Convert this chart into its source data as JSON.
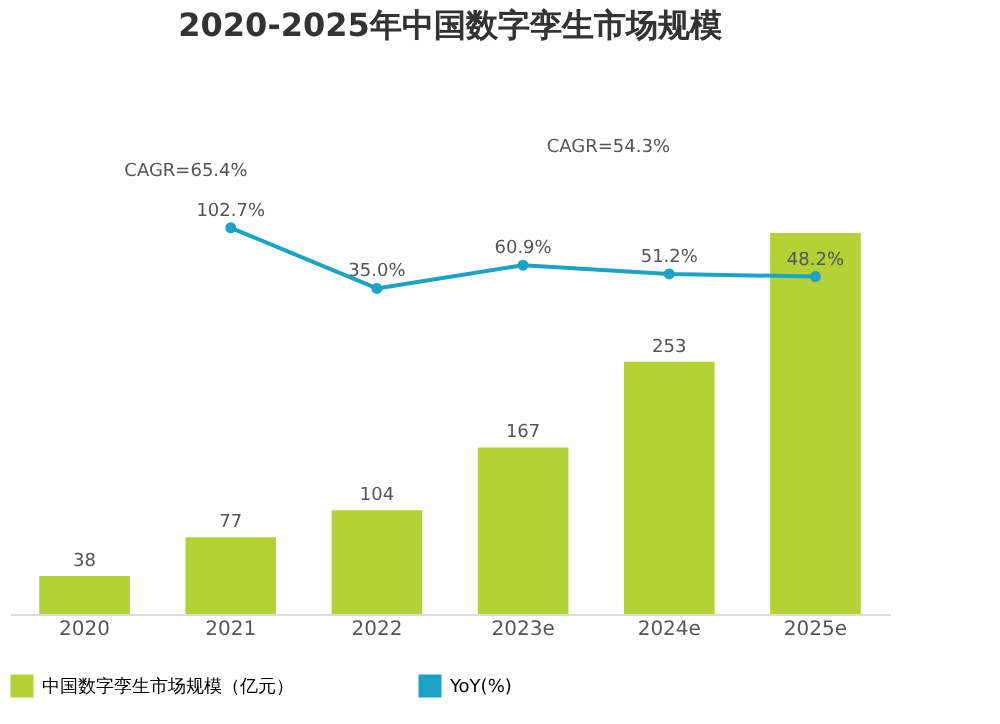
{
  "chart_data": {
    "type": "bar",
    "title": "2020-2025年中国数字孪生市场规模",
    "categories": [
      "2020",
      "2021",
      "2022",
      "2023e",
      "2024e",
      "2025e"
    ],
    "series": [
      {
        "name": "中国数字孪生市场规模（亿元）",
        "color": "#b2d235",
        "values": [
          38,
          77,
          104,
          167,
          253,
          382
        ],
        "value_labels": [
          "38",
          "77",
          "104",
          "167",
          "253",
          null
        ]
      },
      {
        "name": "YoY(%)",
        "type": "line",
        "axis": "y2",
        "color": "#1ba3c6",
        "marker": "circle",
        "values": [
          null,
          102.7,
          35.0,
          60.9,
          51.2,
          48.2
        ],
        "value_labels": [
          null,
          "102.7%",
          "35.0%",
          "60.9%",
          "51.2%",
          "48.2%"
        ]
      }
    ],
    "annotations": [
      "CAGR=65.4%",
      "CAGR=54.3%"
    ],
    "legend": "bottom"
  }
}
